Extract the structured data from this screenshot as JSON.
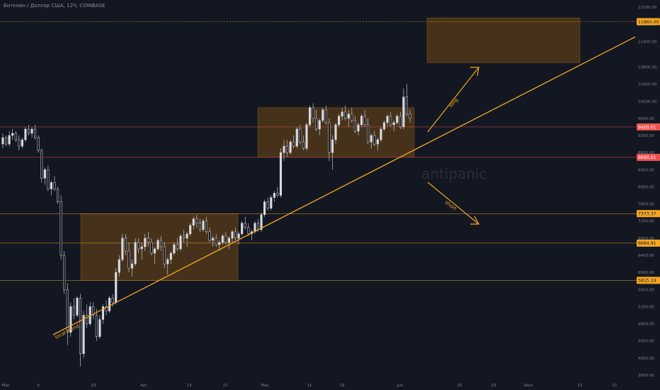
{
  "header": {
    "symbol_line": "Биткоин / Доллар США, 12Ч, COINBASE"
  },
  "watermark": "antipanic",
  "colors": {
    "background": "#131722",
    "candle": "#d9dbe0",
    "trendline": "#f5a623",
    "zone_fill": "rgba(255,152,0,0.22)",
    "level_orange": "#f5a623",
    "level_red": "#ef5350"
  },
  "chart_data": {
    "type": "candlestick",
    "title": "Биткоин / Доллар США, 12Ч, COINBASE",
    "ylim": [
      3600,
      12200
    ],
    "y_ticks": [
      {
        "label": "12200.00",
        "value": 12200
      },
      {
        "label": "11800.00",
        "value": 11800
      },
      {
        "label": "11400.00",
        "value": 11400
      },
      {
        "label": "10800.00",
        "value": 10800
      },
      {
        "label": "10400.00",
        "value": 10400
      },
      {
        "label": "10000.00",
        "value": 10000
      },
      {
        "label": "9600.00",
        "value": 9600
      },
      {
        "label": "9200.00",
        "value": 9200
      },
      {
        "label": "8800.00",
        "value": 8800
      },
      {
        "label": "8400.00",
        "value": 8400
      },
      {
        "label": "8000.00",
        "value": 8000
      },
      {
        "label": "7600.00",
        "value": 7600
      },
      {
        "label": "7200.00",
        "value": 7200
      },
      {
        "label": "6800.00",
        "value": 6800
      },
      {
        "label": "6400.00",
        "value": 6400
      },
      {
        "label": "6000.00",
        "value": 6000
      },
      {
        "label": "5600.00",
        "value": 5600
      },
      {
        "label": "5200.00",
        "value": 5200
      },
      {
        "label": "4800.00",
        "value": 4800
      },
      {
        "label": "4400.00",
        "value": 4400
      },
      {
        "label": "4000.00",
        "value": 4000
      },
      {
        "label": "3600.00",
        "value": 3600
      }
    ],
    "x_ticks": [
      "Mar",
      "9",
      "23",
      "Apr",
      "13",
      "21",
      "May",
      "11",
      "19",
      "Jun",
      "15",
      "23",
      "Июл",
      "13",
      "21"
    ],
    "levels": [
      {
        "label": "11860.00",
        "value": 11860,
        "color": "orange"
      },
      {
        "label": "9400.01",
        "value": 9400.01,
        "color": "red"
      },
      {
        "label": "8690.01",
        "value": 8690.01,
        "color": "red"
      },
      {
        "label": "7373.37",
        "value": 7373.37,
        "color": "orange"
      },
      {
        "label": "6684.91",
        "value": 6684.91,
        "color": "orange"
      },
      {
        "label": "5815.24",
        "value": 5815.24,
        "color": "orange"
      }
    ],
    "zones": [
      {
        "name": "range-1",
        "price_low": 5815,
        "price_high": 7373
      },
      {
        "name": "range-2",
        "price_low": 8690,
        "price_high": 9850
      },
      {
        "name": "target-zone",
        "price_low": 10900,
        "price_high": 11950
      }
    ],
    "trendline": {
      "label": "local trend"
    },
    "annotations": {
      "long": "long",
      "short": "short"
    },
    "candles": [
      [
        9000,
        9250,
        8900,
        9150
      ],
      [
        9150,
        9200,
        8950,
        9000
      ],
      [
        9000,
        9300,
        8950,
        9200
      ],
      [
        9200,
        9350,
        9100,
        9250
      ],
      [
        9250,
        9300,
        9050,
        9100
      ],
      [
        9100,
        9200,
        8850,
        8950
      ],
      [
        8950,
        9150,
        8900,
        9100
      ],
      [
        9100,
        9400,
        9050,
        9350
      ],
      [
        9350,
        9450,
        9200,
        9250
      ],
      [
        9250,
        9400,
        9150,
        9350
      ],
      [
        9350,
        9450,
        9100,
        9150
      ],
      [
        9150,
        9200,
        8800,
        8850
      ],
      [
        8850,
        8900,
        8100,
        8200
      ],
      [
        8200,
        8450,
        8050,
        8400
      ],
      [
        8400,
        8500,
        7900,
        7950
      ],
      [
        7950,
        8150,
        7800,
        8100
      ],
      [
        8100,
        8250,
        7900,
        7950
      ],
      [
        7950,
        8000,
        7600,
        7650
      ],
      [
        7650,
        7800,
        6300,
        6400
      ],
      [
        6400,
        6500,
        5500,
        5600
      ],
      [
        5600,
        5750,
        4300,
        4600
      ],
      [
        4600,
        5300,
        4500,
        5200
      ],
      [
        5200,
        5400,
        4900,
        5000
      ],
      [
        5000,
        5450,
        4950,
        5400
      ],
      [
        5400,
        5500,
        3800,
        4100
      ],
      [
        4100,
        5100,
        4000,
        5000
      ],
      [
        5000,
        5250,
        4700,
        4800
      ],
      [
        4800,
        5300,
        4750,
        5200
      ],
      [
        5200,
        5300,
        4900,
        5000
      ],
      [
        5000,
        5150,
        4400,
        4500
      ],
      [
        4500,
        5000,
        4450,
        4900
      ],
      [
        4900,
        5250,
        4800,
        5200
      ],
      [
        5200,
        5350,
        5000,
        5100
      ],
      [
        5100,
        5450,
        5050,
        5400
      ],
      [
        5400,
        5500,
        5200,
        5300
      ],
      [
        5300,
        6100,
        5250,
        6000
      ],
      [
        6000,
        6400,
        5900,
        6300
      ],
      [
        6300,
        6900,
        6250,
        6800
      ],
      [
        6800,
        6900,
        6400,
        6500
      ],
      [
        6500,
        6700,
        6000,
        6100
      ],
      [
        6100,
        6300,
        5900,
        6200
      ],
      [
        6200,
        6800,
        6150,
        6700
      ],
      [
        6700,
        6800,
        6450,
        6550
      ],
      [
        6550,
        6700,
        6300,
        6600
      ],
      [
        6600,
        6900,
        6500,
        6800
      ],
      [
        6800,
        6950,
        6600,
        6700
      ],
      [
        6700,
        6800,
        6400,
        6450
      ],
      [
        6450,
        6600,
        6200,
        6550
      ],
      [
        6550,
        6800,
        6500,
        6750
      ],
      [
        6750,
        6850,
        6500,
        6600
      ],
      [
        6600,
        6700,
        6100,
        6200
      ],
      [
        6200,
        6350,
        5950,
        6300
      ],
      [
        6300,
        6500,
        6200,
        6450
      ],
      [
        6450,
        6700,
        6400,
        6650
      ],
      [
        6650,
        6800,
        6500,
        6550
      ],
      [
        6550,
        6900,
        6500,
        6850
      ],
      [
        6850,
        7000,
        6700,
        6800
      ],
      [
        6800,
        6950,
        6600,
        6900
      ],
      [
        6900,
        7150,
        6850,
        7100
      ],
      [
        7100,
        7300,
        7000,
        7250
      ],
      [
        7250,
        7350,
        7050,
        7150
      ],
      [
        7150,
        7250,
        6950,
        7000
      ],
      [
        7000,
        7250,
        6950,
        7200
      ],
      [
        7200,
        7300,
        6900,
        6950
      ],
      [
        6950,
        7050,
        6700,
        6750
      ],
      [
        6750,
        6850,
        6600,
        6800
      ],
      [
        6800,
        6900,
        6600,
        6650
      ],
      [
        6650,
        6750,
        6500,
        6700
      ],
      [
        6700,
        6900,
        6650,
        6850
      ],
      [
        6850,
        6950,
        6650,
        6700
      ],
      [
        6700,
        6850,
        6550,
        6800
      ],
      [
        6800,
        7000,
        6700,
        6950
      ],
      [
        6950,
        7050,
        6750,
        6800
      ],
      [
        6800,
        6950,
        6650,
        6900
      ],
      [
        6900,
        7200,
        6850,
        7150
      ],
      [
        7150,
        7300,
        7000,
        7050
      ],
      [
        7050,
        7150,
        6850,
        6900
      ],
      [
        6900,
        7000,
        6750,
        6950
      ],
      [
        6950,
        7200,
        6900,
        7150
      ],
      [
        7150,
        7250,
        6950,
        7000
      ],
      [
        7000,
        7400,
        6950,
        7350
      ],
      [
        7350,
        7700,
        7300,
        7650
      ],
      [
        7650,
        7750,
        7450,
        7500
      ],
      [
        7500,
        7800,
        7450,
        7750
      ],
      [
        7750,
        7900,
        7650,
        7850
      ],
      [
        7850,
        8000,
        7750,
        7800
      ],
      [
        7800,
        8900,
        7750,
        8800
      ],
      [
        8800,
        9100,
        8600,
        8950
      ],
      [
        8950,
        9100,
        8700,
        8800
      ],
      [
        8800,
        9100,
        8750,
        9050
      ],
      [
        9050,
        9200,
        8900,
        8950
      ],
      [
        8950,
        9400,
        8900,
        9350
      ],
      [
        9350,
        9450,
        9000,
        9050
      ],
      [
        9050,
        9200,
        8850,
        8900
      ],
      [
        8900,
        9500,
        8850,
        9450
      ],
      [
        9450,
        9900,
        9400,
        9850
      ],
      [
        9850,
        9950,
        9500,
        9600
      ],
      [
        9600,
        9800,
        9300,
        9350
      ],
      [
        9350,
        9600,
        9200,
        9550
      ],
      [
        9550,
        9850,
        9500,
        9800
      ],
      [
        9800,
        9900,
        9450,
        9500
      ],
      [
        9500,
        9600,
        8600,
        8800
      ],
      [
        8800,
        9200,
        8400,
        9100
      ],
      [
        9100,
        9500,
        9000,
        9450
      ],
      [
        9450,
        9700,
        9400,
        9650
      ],
      [
        9650,
        9850,
        9550,
        9750
      ],
      [
        9750,
        9900,
        9550,
        9600
      ],
      [
        9600,
        9800,
        9400,
        9700
      ],
      [
        9700,
        9850,
        9500,
        9550
      ],
      [
        9550,
        9650,
        9250,
        9300
      ],
      [
        9300,
        9500,
        9200,
        9450
      ],
      [
        9450,
        9700,
        9400,
        9650
      ],
      [
        9650,
        9800,
        9400,
        9450
      ],
      [
        9450,
        9600,
        9000,
        9050
      ],
      [
        9050,
        9250,
        8900,
        9200
      ],
      [
        9200,
        9300,
        8950,
        9000
      ],
      [
        9000,
        9150,
        8850,
        9100
      ],
      [
        9100,
        9400,
        9050,
        9350
      ],
      [
        9350,
        9550,
        9300,
        9500
      ],
      [
        9500,
        9700,
        9400,
        9650
      ],
      [
        9650,
        9750,
        9400,
        9450
      ],
      [
        9450,
        9550,
        9300,
        9500
      ],
      [
        9500,
        9700,
        9450,
        9650
      ],
      [
        9650,
        9750,
        9350,
        9400
      ],
      [
        9400,
        10300,
        9350,
        10100
      ],
      [
        10100,
        10400,
        9650,
        9700
      ],
      [
        9700,
        9800,
        9500,
        9600
      ]
    ]
  }
}
